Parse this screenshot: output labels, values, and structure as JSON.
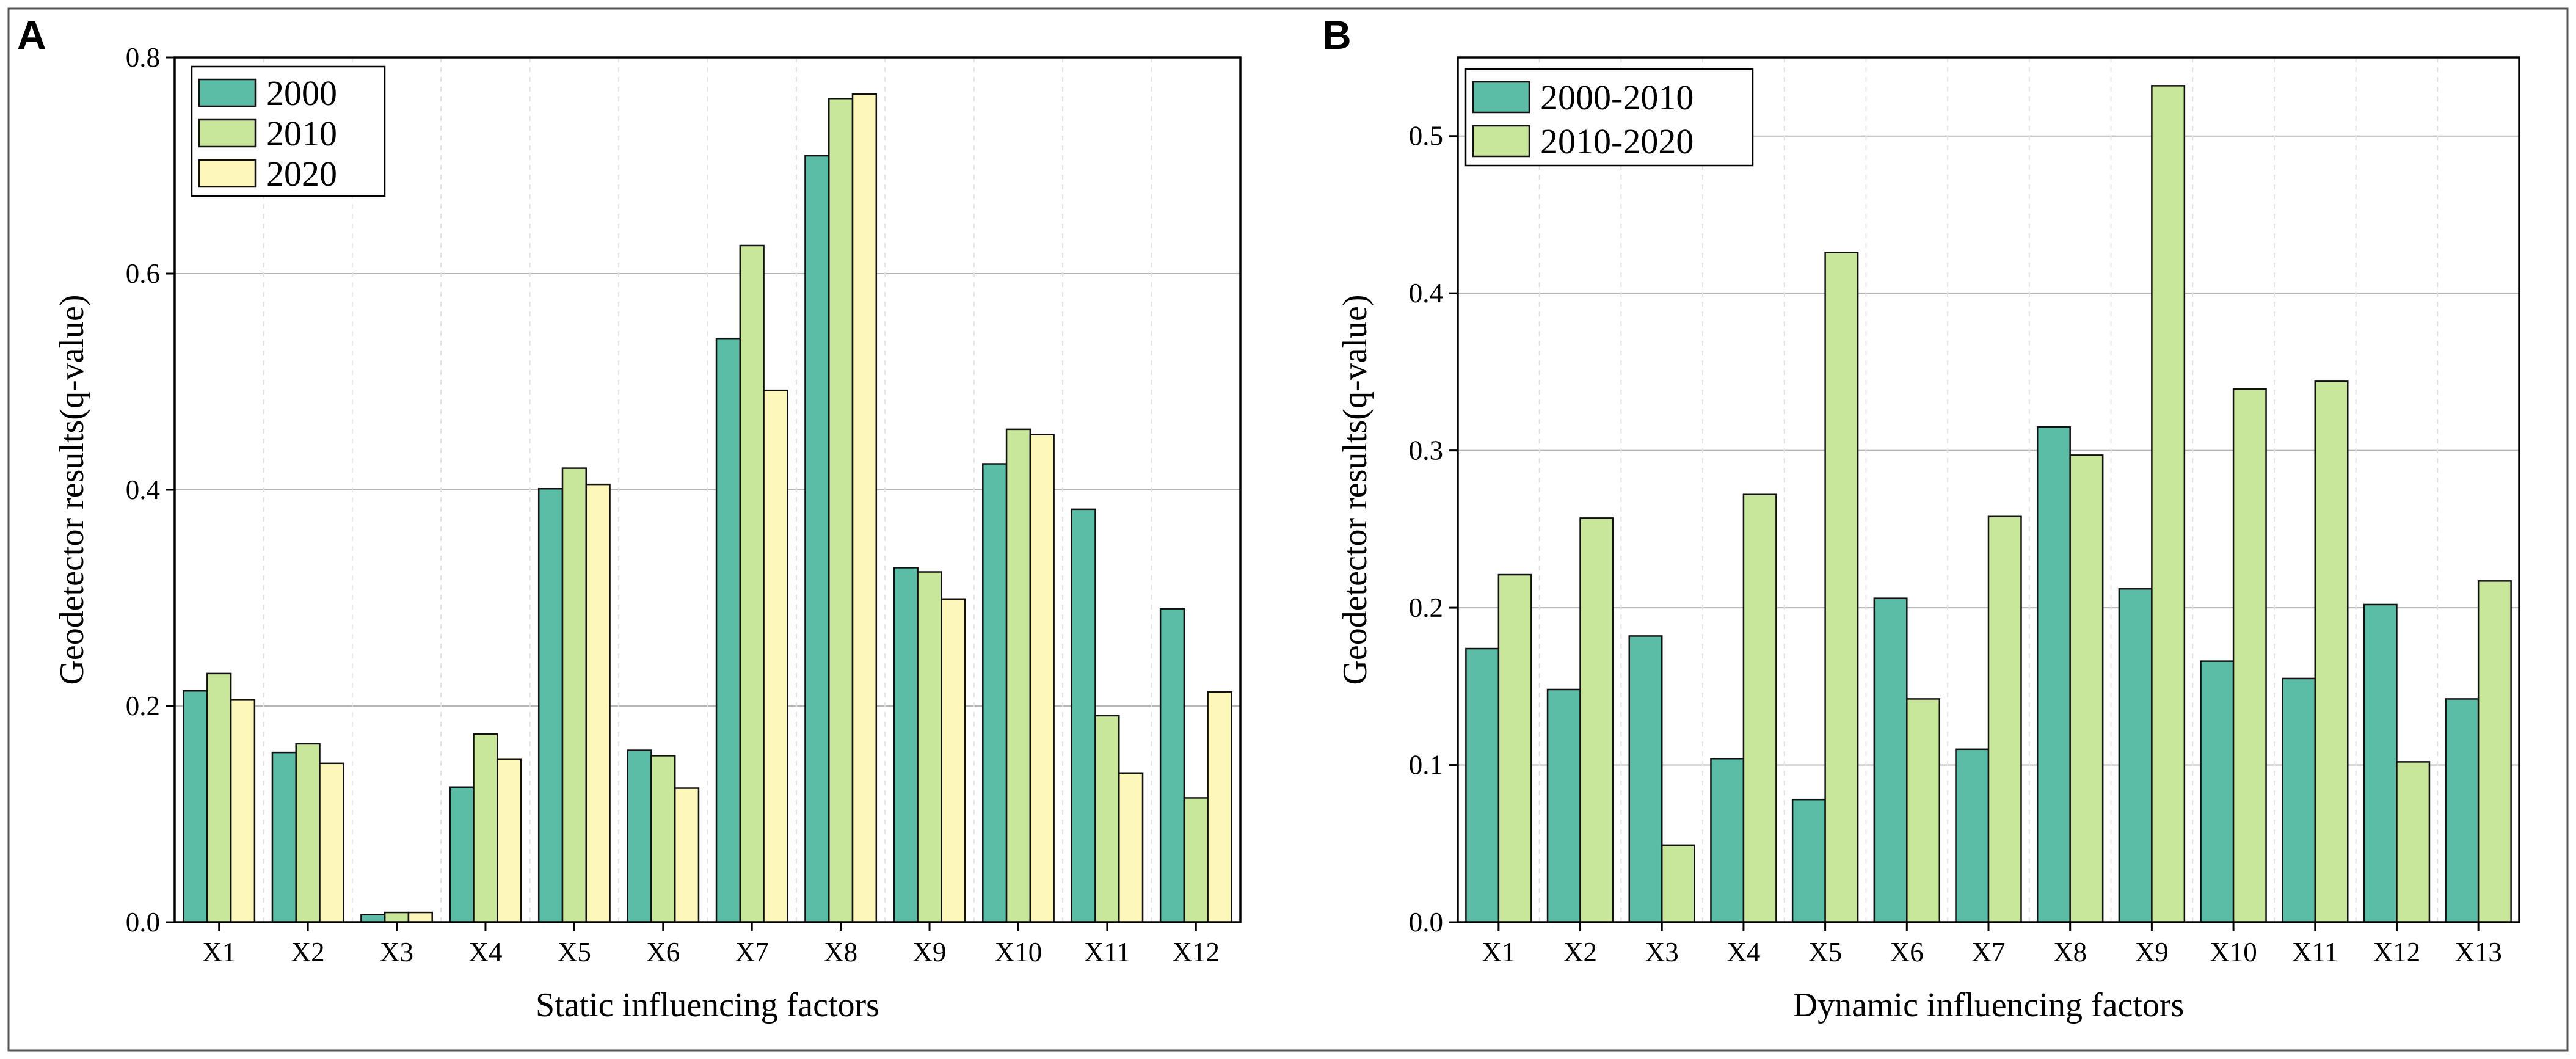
{
  "chart_data": [
    {
      "panel": "A",
      "type": "bar",
      "xlabel": "Static influencing factors",
      "ylabel": "Geodetector results(q-value)",
      "ylim": [
        0,
        0.8
      ],
      "yticks": [
        0.0,
        0.2,
        0.4,
        0.6,
        0.8
      ],
      "ytick_labels": [
        "0.0",
        "0.2",
        "0.4",
        "0.6",
        "0.8"
      ],
      "grid": "horizontal",
      "legend": "top-left",
      "categories": [
        "X1",
        "X2",
        "X3",
        "X4",
        "X5",
        "X6",
        "X7",
        "X8",
        "X9",
        "X10",
        "X11",
        "X12"
      ],
      "series": [
        {
          "name": "2000",
          "color": "#5cbda6",
          "values": [
            0.214,
            0.157,
            0.007,
            0.125,
            0.401,
            0.159,
            0.54,
            0.709,
            0.328,
            0.424,
            0.382,
            0.29
          ]
        },
        {
          "name": "2010",
          "color": "#c8e79a",
          "values": [
            0.23,
            0.165,
            0.009,
            0.174,
            0.42,
            0.154,
            0.626,
            0.762,
            0.324,
            0.456,
            0.191,
            0.115
          ]
        },
        {
          "name": "2020",
          "color": "#fdf8b9",
          "values": [
            0.206,
            0.147,
            0.009,
            0.151,
            0.405,
            0.124,
            0.492,
            0.766,
            0.299,
            0.451,
            0.138,
            0.213
          ]
        }
      ]
    },
    {
      "panel": "B",
      "type": "bar",
      "xlabel": "Dynamic influencing factors",
      "ylabel": "Geodetector results(q-value)",
      "ylim": [
        0,
        0.55
      ],
      "yticks": [
        0.0,
        0.1,
        0.2,
        0.3,
        0.4,
        0.5
      ],
      "ytick_labels": [
        "0.0",
        "0.1",
        "0.2",
        "0.3",
        "0.4",
        "0.5"
      ],
      "grid": "horizontal",
      "legend": "top-left",
      "categories": [
        "X1",
        "X2",
        "X3",
        "X4",
        "X5",
        "X6",
        "X7",
        "X8",
        "X9",
        "X10",
        "X11",
        "X12",
        "X13"
      ],
      "series": [
        {
          "name": "2000-2010",
          "color": "#5cbda6",
          "values": [
            0.174,
            0.148,
            0.182,
            0.104,
            0.078,
            0.206,
            0.11,
            0.315,
            0.212,
            0.166,
            0.155,
            0.202,
            0.142
          ]
        },
        {
          "name": "2010-2020",
          "color": "#c8e79a",
          "values": [
            0.221,
            0.257,
            0.049,
            0.272,
            0.426,
            0.142,
            0.258,
            0.297,
            0.532,
            0.339,
            0.344,
            0.102,
            0.217
          ]
        }
      ]
    }
  ]
}
